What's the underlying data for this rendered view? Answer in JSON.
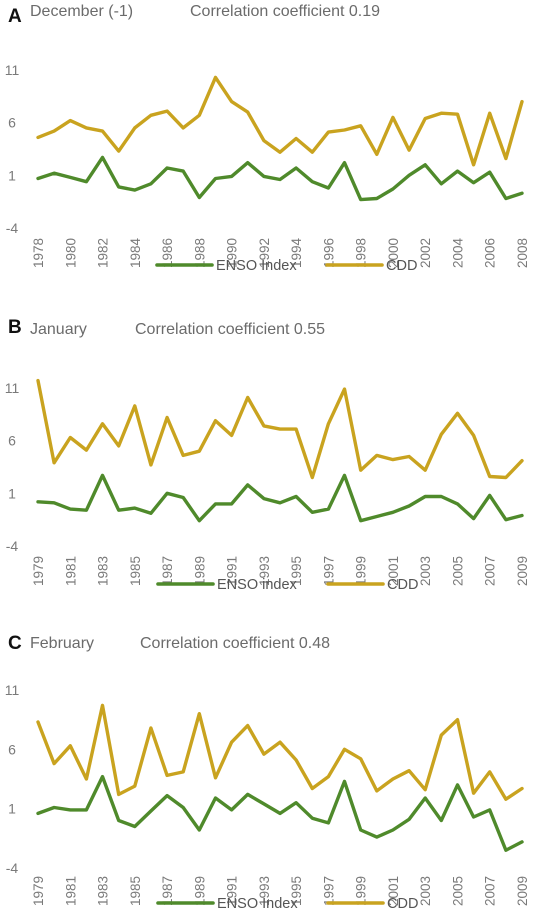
{
  "colors": {
    "enso": "#4f8a2b",
    "cdd": "#c9a31f",
    "text": "#6b6b6b"
  },
  "chart_data": [
    {
      "type": "line",
      "panel_label": "A",
      "title": "December (-1)",
      "subtitle": "Correlation coefficient 0.19",
      "ylim": [
        -4,
        11
      ],
      "yticks": [
        "-4",
        "1",
        "6",
        "11"
      ],
      "x": [
        1978,
        1979,
        1980,
        1981,
        1982,
        1983,
        1984,
        1985,
        1986,
        1987,
        1988,
        1989,
        1990,
        1991,
        1992,
        1993,
        1994,
        1995,
        1996,
        1997,
        1998,
        1999,
        2000,
        2001,
        2002,
        2003,
        2004,
        2005,
        2006,
        2007,
        2008
      ],
      "xtick_labels": [
        "1978",
        "1980",
        "1982",
        "1984",
        "1986",
        "1988",
        "1990",
        "1992",
        "1994",
        "1996",
        "1998",
        "2000",
        "2002",
        "2004",
        "2006",
        "2008"
      ],
      "legend": "bottom",
      "series": [
        {
          "name": "ENSO Index",
          "color_key": "enso",
          "values": [
            0.7,
            1.2,
            0.8,
            0.4,
            2.7,
            -0.1,
            -0.4,
            0.2,
            1.7,
            1.4,
            -1.1,
            0.7,
            0.9,
            2.2,
            0.9,
            0.6,
            1.7,
            0.4,
            -0.2,
            2.2,
            -1.3,
            -1.2,
            -0.3,
            1.0,
            2.0,
            0.2,
            1.4,
            0.3,
            1.3,
            -1.2,
            -0.7
          ]
        },
        {
          "name": "CDD",
          "color_key": "cdd",
          "values": [
            4.6,
            5.2,
            6.2,
            5.5,
            5.2,
            3.3,
            5.5,
            6.7,
            7.1,
            5.5,
            6.7,
            10.3,
            8.0,
            7.0,
            4.3,
            3.2,
            4.5,
            3.2,
            5.1,
            5.3,
            5.7,
            3.0,
            6.5,
            3.4,
            6.4,
            6.9,
            6.8,
            2.0,
            6.9,
            2.6,
            8.0
          ]
        }
      ]
    },
    {
      "type": "line",
      "panel_label": "B",
      "title": "January",
      "subtitle": "Correlation coefficient 0.55",
      "ylim": [
        -4,
        11
      ],
      "yticks": [
        "-4",
        "1",
        "6",
        "11"
      ],
      "x": [
        1979,
        1980,
        1981,
        1982,
        1983,
        1984,
        1985,
        1986,
        1987,
        1988,
        1989,
        1990,
        1991,
        1992,
        1993,
        1994,
        1995,
        1996,
        1997,
        1998,
        1999,
        2000,
        2001,
        2002,
        2003,
        2004,
        2005,
        2006,
        2007,
        2008,
        2009
      ],
      "xtick_labels": [
        "1979",
        "1981",
        "1983",
        "1985",
        "1987",
        "1989",
        "1991",
        "1993",
        "1995",
        "1997",
        "1999",
        "2001",
        "2003",
        "2005",
        "2007",
        "2009"
      ],
      "legend": "bottom",
      "series": [
        {
          "name": "ENSO index",
          "color_key": "enso",
          "values": [
            0.2,
            0.1,
            -0.5,
            -0.6,
            2.7,
            -0.6,
            -0.4,
            -0.9,
            1.0,
            0.6,
            -1.6,
            0.0,
            0.0,
            1.8,
            0.5,
            0.1,
            0.7,
            -0.8,
            -0.5,
            2.7,
            -1.6,
            -1.2,
            -0.8,
            -0.2,
            0.7,
            0.7,
            0.0,
            -1.4,
            0.8,
            -1.5,
            -1.1
          ]
        },
        {
          "name": "CDD",
          "color_key": "cdd",
          "values": [
            11.7,
            3.9,
            6.3,
            5.1,
            7.6,
            5.5,
            9.3,
            3.7,
            8.2,
            4.6,
            5.0,
            7.9,
            6.5,
            10.1,
            7.4,
            7.1,
            7.1,
            2.5,
            7.6,
            10.9,
            3.2,
            4.6,
            4.2,
            4.5,
            3.2,
            6.6,
            8.6,
            6.5,
            2.6,
            2.5,
            4.1
          ]
        }
      ]
    },
    {
      "type": "line",
      "panel_label": "C",
      "title": "February",
      "subtitle": "Correlation coefficient 0.48",
      "ylim": [
        -4,
        11
      ],
      "yticks": [
        "-4",
        "1",
        "6",
        "11"
      ],
      "x": [
        1979,
        1980,
        1981,
        1982,
        1983,
        1984,
        1985,
        1986,
        1987,
        1988,
        1989,
        1990,
        1991,
        1992,
        1993,
        1994,
        1995,
        1996,
        1997,
        1998,
        1999,
        2000,
        2001,
        2002,
        2003,
        2004,
        2005,
        2006,
        2007,
        2008,
        2009
      ],
      "xtick_labels": [
        "1979",
        "1981",
        "1983",
        "1985",
        "1987",
        "1989",
        "1991",
        "1993",
        "1995",
        "1997",
        "1999",
        "2001",
        "2003",
        "2005",
        "2007",
        "2009"
      ],
      "legend": "bottom",
      "series": [
        {
          "name": "ENSO Index",
          "color_key": "enso",
          "values": [
            0.6,
            1.1,
            0.9,
            0.9,
            3.7,
            0.0,
            -0.5,
            0.8,
            2.1,
            1.1,
            -0.8,
            1.9,
            0.9,
            2.2,
            1.4,
            0.6,
            1.5,
            0.2,
            -0.2,
            3.3,
            -0.8,
            -1.4,
            -0.8,
            0.1,
            1.9,
            0.0,
            3.0,
            0.3,
            0.9,
            -2.5,
            -1.8
          ]
        },
        {
          "name": "CDD",
          "color_key": "cdd",
          "values": [
            8.3,
            4.8,
            6.3,
            3.5,
            9.7,
            2.2,
            2.9,
            7.8,
            3.8,
            4.1,
            9.0,
            3.6,
            6.6,
            8.0,
            5.6,
            6.6,
            5.1,
            2.7,
            3.7,
            6.0,
            5.2,
            2.5,
            3.5,
            4.2,
            2.6,
            7.2,
            8.5,
            2.3,
            4.1,
            1.8,
            2.7
          ]
        }
      ]
    }
  ]
}
